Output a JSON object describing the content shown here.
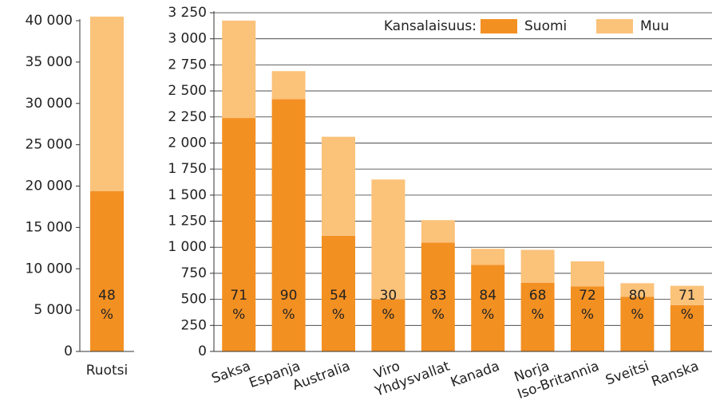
{
  "chart_data": [
    {
      "type": "bar",
      "stacked": true,
      "grid": false,
      "categories": [
        "Ruotsi"
      ],
      "series": [
        {
          "color": "#f39022",
          "values": [
            19400
          ]
        },
        {
          "color": "#fbc27a",
          "values": [
            21100
          ]
        }
      ],
      "shares": [
        48
      ],
      "share_unit": "%",
      "ylim": [
        0,
        40000
      ],
      "yticks": [
        0,
        {
          "value": 5000,
          "label": "5 000"
        },
        {
          "value": 10000,
          "label": "10 000"
        },
        {
          "value": 15000,
          "label": "15 000"
        },
        {
          "value": 20000,
          "label": "20 000"
        },
        {
          "value": 25000,
          "label": "25 000"
        },
        {
          "value": 30000,
          "label": "30 000"
        },
        {
          "value": 35000,
          "label": "35 000"
        },
        {
          "value": 40000,
          "label": "40 000"
        }
      ]
    },
    {
      "type": "bar",
      "stacked": true,
      "grid": true,
      "legend_title": "Kansalaisuus:",
      "legend": "top-right",
      "categories": [
        "Saksa",
        "Espanja",
        "Australia",
        "Viro",
        "Yhdysvallat",
        "Kanada",
        "Norja",
        "Iso-Britannia",
        "Sveitsi",
        "Ranska"
      ],
      "series": [
        {
          "name": "Suomi",
          "color": "#f39022",
          "values": [
            2240,
            2420,
            1110,
            500,
            1045,
            830,
            660,
            625,
            525,
            445
          ]
        },
        {
          "name": "Muu",
          "color": "#fbc27a",
          "values": [
            935,
            270,
            950,
            1150,
            215,
            155,
            315,
            240,
            130,
            185
          ]
        }
      ],
      "shares": [
        71,
        90,
        54,
        30,
        83,
        84,
        68,
        72,
        80,
        71
      ],
      "share_unit": "%",
      "ylim": [
        0,
        3250
      ],
      "yticks": [
        0,
        250,
        500,
        750,
        {
          "value": 1000,
          "label": "1 000"
        },
        {
          "value": 1250,
          "label": "1 250"
        },
        {
          "value": 1500,
          "label": "1 500"
        },
        {
          "value": 1750,
          "label": "1 750"
        },
        {
          "value": 2000,
          "label": "2 000"
        },
        {
          "value": 2250,
          "label": "2 250"
        },
        {
          "value": 2500,
          "label": "2 500"
        },
        {
          "value": 2750,
          "label": "2 750"
        },
        {
          "value": 3000,
          "label": "3 000"
        },
        {
          "value": 3250,
          "label": "3 250"
        }
      ]
    }
  ]
}
